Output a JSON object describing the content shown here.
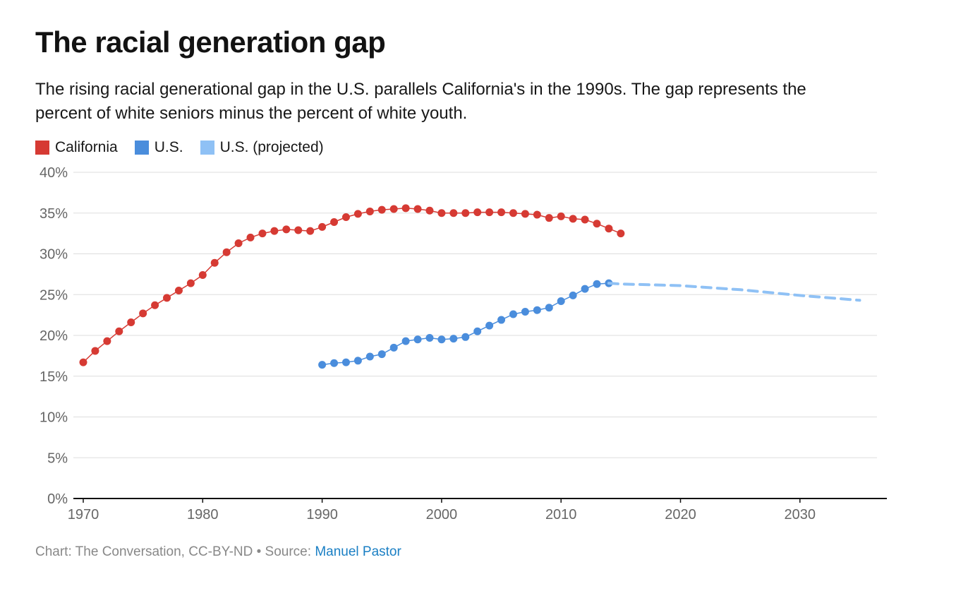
{
  "title": "The racial generation gap",
  "subtitle": "The rising racial generational gap in the U.S. parallels California's in the 1990s. The gap represents the percent of white seniors minus the percent of white youth.",
  "footer": {
    "credit": "Chart: The Conversation, CC-BY-ND • Source: ",
    "source_link": "Manuel Pastor"
  },
  "chart_data": {
    "type": "line",
    "title": "The racial generation gap",
    "xlabel": "",
    "ylabel": "",
    "xlim": [
      1970,
      2036
    ],
    "ylim": [
      0,
      40
    ],
    "x_ticks": [
      1970,
      1980,
      1990,
      2000,
      2010,
      2020,
      2030
    ],
    "y_ticks": [
      0,
      5,
      10,
      15,
      20,
      25,
      30,
      35,
      40
    ],
    "y_tick_labels": [
      "0%",
      "5%",
      "10%",
      "15%",
      "20%",
      "25%",
      "30%",
      "35%",
      "40%"
    ],
    "x_tick_labels": [
      "1970",
      "1980",
      "1990",
      "2000",
      "2010",
      "2020",
      "2030"
    ],
    "grid": true,
    "legend_position": "top-left",
    "series": [
      {
        "name": "California",
        "color": "#d63a33",
        "style": "solid-markers",
        "x": [
          1970,
          1971,
          1972,
          1973,
          1974,
          1975,
          1976,
          1977,
          1978,
          1979,
          1980,
          1981,
          1982,
          1983,
          1984,
          1985,
          1986,
          1987,
          1988,
          1989,
          1990,
          1991,
          1992,
          1993,
          1994,
          1995,
          1996,
          1997,
          1998,
          1999,
          2000,
          2001,
          2002,
          2003,
          2004,
          2005,
          2006,
          2007,
          2008,
          2009,
          2010,
          2011,
          2012,
          2013,
          2014,
          2015
        ],
        "values": [
          16.7,
          18.1,
          19.3,
          20.5,
          21.6,
          22.7,
          23.7,
          24.6,
          25.5,
          26.4,
          27.4,
          28.9,
          30.2,
          31.3,
          32.0,
          32.5,
          32.8,
          33.0,
          32.9,
          32.8,
          33.3,
          33.9,
          34.5,
          34.9,
          35.2,
          35.4,
          35.5,
          35.6,
          35.5,
          35.3,
          35.0,
          35.0,
          35.0,
          35.1,
          35.1,
          35.1,
          35.0,
          34.9,
          34.8,
          34.4,
          34.6,
          34.3,
          34.2,
          33.7,
          33.1,
          32.5
        ]
      },
      {
        "name": "U.S.",
        "color": "#4a8ddc",
        "style": "solid-markers",
        "x": [
          1990,
          1991,
          1992,
          1993,
          1994,
          1995,
          1996,
          1997,
          1998,
          1999,
          2000,
          2001,
          2002,
          2003,
          2004,
          2005,
          2006,
          2007,
          2008,
          2009,
          2010,
          2011,
          2012,
          2013,
          2014
        ],
        "values": [
          16.4,
          16.6,
          16.7,
          16.9,
          17.4,
          17.7,
          18.5,
          19.3,
          19.5,
          19.7,
          19.5,
          19.6,
          19.8,
          20.5,
          21.2,
          21.9,
          22.6,
          22.9,
          23.1,
          23.4,
          24.2,
          24.9,
          25.7,
          26.3,
          26.4
        ]
      },
      {
        "name": "U.S. (projected)",
        "color": "#8fc1f5",
        "style": "dashed",
        "x": [
          2014,
          2015,
          2020,
          2025,
          2030,
          2035
        ],
        "values": [
          26.4,
          26.3,
          26.1,
          25.6,
          24.9,
          24.3
        ]
      }
    ]
  }
}
